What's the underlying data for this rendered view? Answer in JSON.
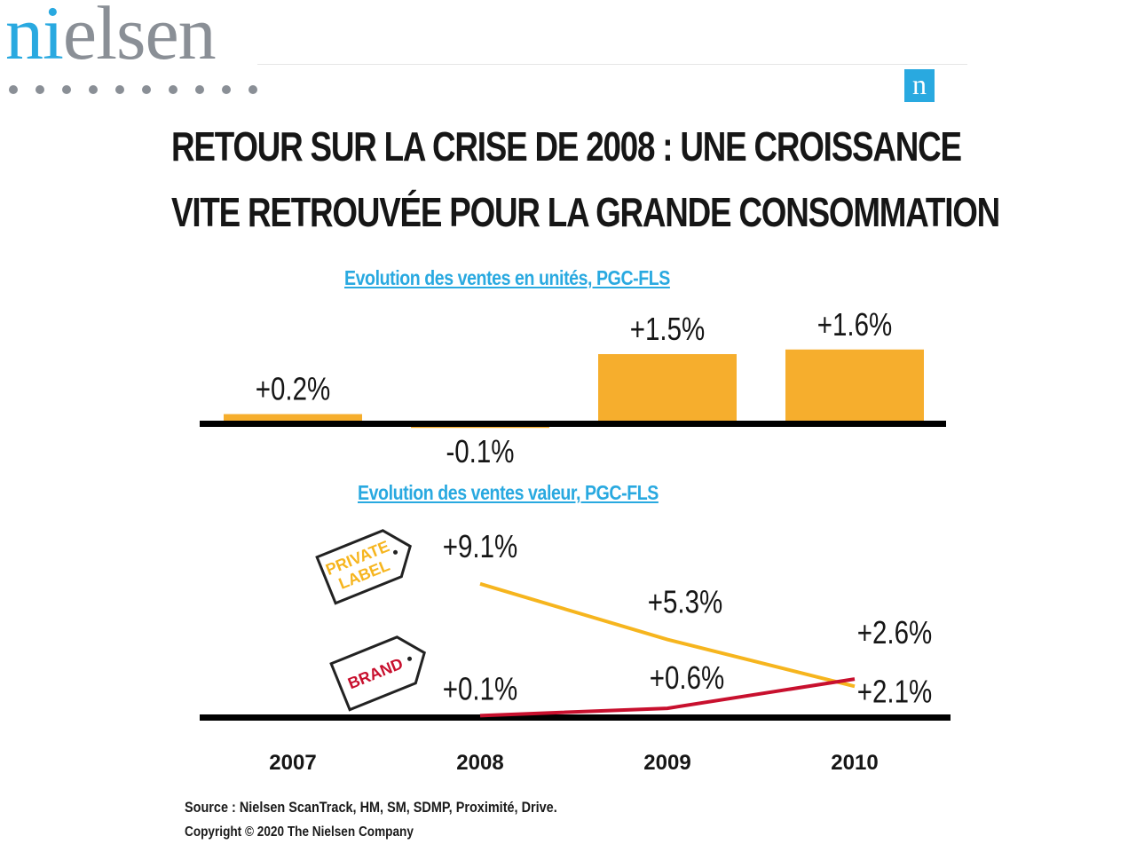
{
  "brand": {
    "logo_text_a": "ni",
    "logo_text_b": "elsen",
    "badge": "n",
    "accent": "#29a9e0"
  },
  "headline": {
    "line1": "RETOUR SUR LA CRISE DE 2008 : UNE CROISSANCE",
    "line2": "VITE RETROUVÉE POUR LA GRANDE CONSOMMATION"
  },
  "chart_data": [
    {
      "type": "bar",
      "title": "Evolution des ventes en unités, PGC-FLS",
      "categories": [
        "2007",
        "2008",
        "2009",
        "2010"
      ],
      "values": [
        0.2,
        -0.1,
        1.5,
        1.6
      ],
      "labels": [
        "+0.2%",
        "-0.1%",
        "+1.5%",
        "+1.6%"
      ],
      "color": "#f6ae2d",
      "grid": false
    },
    {
      "type": "line",
      "title": "Evolution des ventes valeur, PGC-FLS",
      "categories": [
        "2007",
        "2008",
        "2009",
        "2010"
      ],
      "series": [
        {
          "name": "PRIVATE LABEL",
          "x": [
            "2008",
            "2009",
            "2010"
          ],
          "values": [
            9.1,
            5.3,
            2.1
          ],
          "labels": [
            "+9.1%",
            "+5.3%",
            "+2.1%"
          ],
          "color": "#f6b51e"
        },
        {
          "name": "BRAND",
          "x": [
            "2008",
            "2009",
            "2010"
          ],
          "values": [
            0.1,
            0.6,
            2.6
          ],
          "labels": [
            "+0.1%",
            "+0.6%",
            "+2.6%"
          ],
          "color": "#c8102e"
        }
      ],
      "grid": false,
      "legend": "left, as tag labels"
    }
  ],
  "source": {
    "line1": "Source : Nielsen ScanTrack, HM, SM, SDMP, Proximité, Drive.",
    "line2": "Copyright © 2020 The Nielsen Company"
  }
}
